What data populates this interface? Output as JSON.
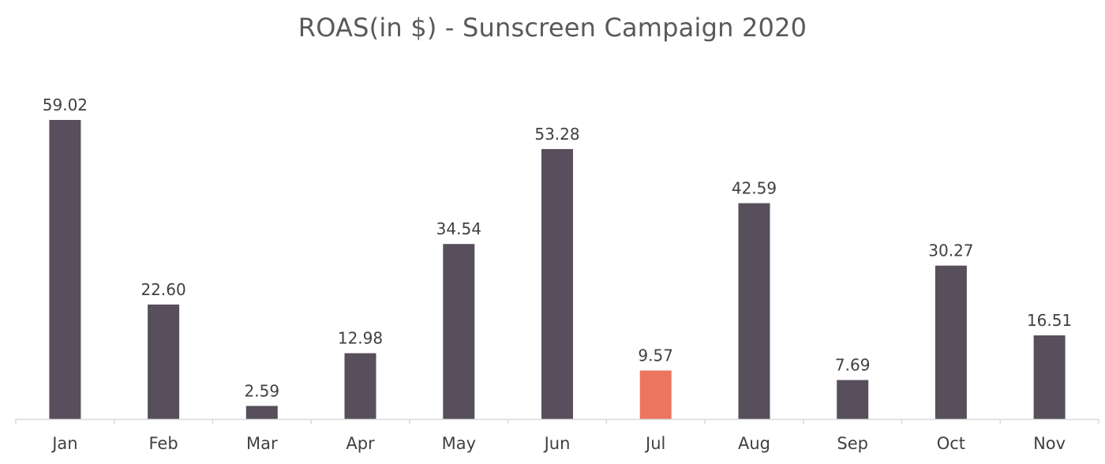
{
  "chart_data": {
    "type": "bar",
    "title": "ROAS(in $) - Sunscreen Campaign 2020",
    "xlabel": "",
    "ylabel": "",
    "categories": [
      "Jan",
      "Feb",
      "Mar",
      "Apr",
      "May",
      "Jun",
      "Jul",
      "Aug",
      "Sep",
      "Oct",
      "Nov"
    ],
    "values": [
      59.02,
      22.6,
      2.59,
      12.98,
      34.54,
      53.28,
      9.57,
      42.59,
      7.69,
      30.27,
      16.51
    ],
    "data_labels": [
      "59.02",
      "22.60",
      "2.59",
      "12.98",
      "34.54",
      "53.28",
      "9.57",
      "42.59",
      "7.69",
      "30.27",
      "16.51"
    ],
    "ylim": [
      0,
      59.02
    ],
    "grid": false,
    "legend": "none",
    "highlight_index": 6,
    "colors": {
      "bar": "#574f5c",
      "highlight": "#ec7560",
      "axis": "#d9d9d9",
      "text": "#404040",
      "title": "#595959"
    }
  }
}
